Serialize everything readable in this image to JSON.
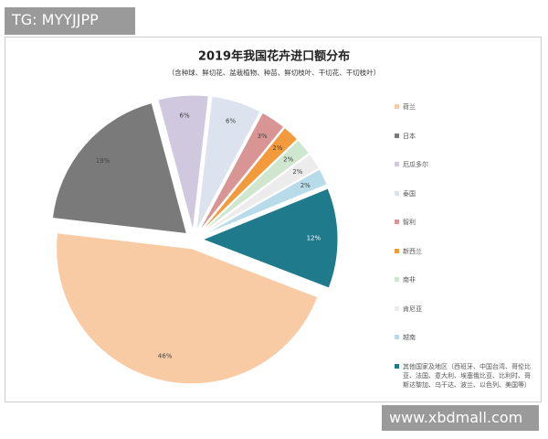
{
  "watermarks": {
    "top": "TG: MYYJJPP",
    "bottom": "www.xbdmall.com"
  },
  "chart_data": {
    "type": "pie",
    "title": "2019年我国花卉进口额分布",
    "subtitle": "（含种球、鲜切花、盆栽植物、种苗、鲜切枝叶、干切花、干切枝叶）",
    "categories": [
      "荷兰",
      "日本",
      "厄瓜多尔",
      "泰国",
      "智利",
      "新西兰",
      "南非",
      "肯尼亚",
      "越南",
      "其他国家及地区（西班牙、中国台湾、哥伦比亚、法国、意大利、埃塞俄比亚、比利时、哥斯达黎加、乌干达、波兰、以色列、美国等）"
    ],
    "values": [
      46,
      19,
      6,
      6,
      3,
      2,
      2,
      2,
      2,
      12
    ],
    "value_labels": [
      "46%",
      "19%",
      "6%",
      "6%",
      "3%",
      "2%",
      "2%",
      "2%",
      "2%",
      "12%"
    ],
    "colors": [
      "#f8cba4",
      "#7a7a7a",
      "#cfc8df",
      "#dce3ef",
      "#d99594",
      "#f39a3c",
      "#cfe6cf",
      "#ececec",
      "#b7dbe8",
      "#1f7a8c"
    ],
    "legend": "right"
  }
}
